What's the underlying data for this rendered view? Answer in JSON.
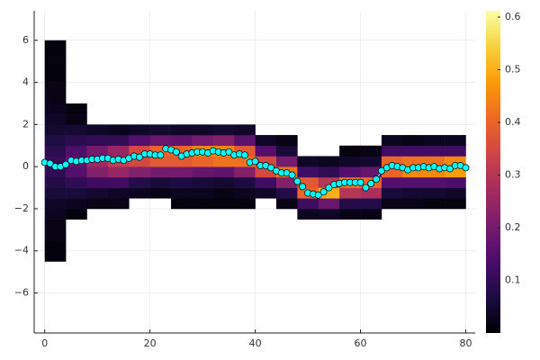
{
  "chart_data": {
    "type": "heatmap",
    "xlim": [
      -2,
      81.8
    ],
    "ylim": [
      -7.9,
      7.4
    ],
    "xticks": [
      0,
      20,
      40,
      60,
      80
    ],
    "yticks": [
      {
        "value": -6,
        "label": "−6"
      },
      {
        "value": -4,
        "label": "−4"
      },
      {
        "value": -2,
        "label": "−2"
      },
      0,
      2,
      4,
      6
    ],
    "grid": true,
    "xbins": [
      0,
      4,
      8,
      12,
      16,
      20,
      24,
      28,
      32,
      36,
      40,
      44,
      48,
      52,
      56,
      60,
      64,
      68,
      72,
      76,
      80
    ],
    "ybins": [
      -4.5,
      -4,
      -3.5,
      -3,
      -2.5,
      -2,
      -1.5,
      -1,
      -0.5,
      0,
      0.5,
      1,
      1.5,
      2,
      2.5,
      3,
      3.5,
      4,
      4.5,
      5,
      5.5,
      6
    ],
    "z": [
      [
        0.01,
        0.01,
        0.02,
        0.02,
        0.03,
        0.04,
        0.06,
        0.08,
        0.1,
        0.11,
        0.09,
        0.07,
        0.05,
        0.04,
        0.03,
        0.02,
        0.02,
        0.01,
        0.01,
        0.01,
        0.01
      ],
      [
        null,
        null,
        null,
        null,
        0.01,
        0.03,
        0.06,
        0.1,
        0.15,
        0.17,
        0.14,
        0.09,
        0.05,
        0.02,
        0.01,
        null,
        null,
        null,
        null,
        null,
        null
      ],
      [
        null,
        null,
        null,
        null,
        null,
        0.02,
        0.05,
        0.12,
        0.22,
        0.26,
        0.2,
        0.1,
        0.04,
        null,
        null,
        null,
        null,
        null,
        null,
        null,
        null
      ],
      [
        null,
        null,
        null,
        null,
        null,
        0.02,
        0.04,
        0.12,
        0.25,
        0.32,
        0.25,
        0.1,
        0.03,
        null,
        null,
        null,
        null,
        null,
        null,
        null,
        null
      ],
      [
        null,
        null,
        null,
        null,
        null,
        null,
        0.03,
        0.08,
        0.22,
        0.35,
        0.35,
        0.15,
        0.04,
        null,
        null,
        null,
        null,
        null,
        null,
        null,
        null
      ],
      [
        null,
        null,
        null,
        null,
        null,
        null,
        0.02,
        0.06,
        0.2,
        0.38,
        0.4,
        0.18,
        0.05,
        null,
        null,
        null,
        null,
        null,
        null,
        null,
        null
      ],
      [
        null,
        null,
        null,
        null,
        null,
        0.01,
        0.03,
        0.07,
        0.2,
        0.38,
        0.4,
        0.17,
        0.04,
        null,
        null,
        null,
        null,
        null,
        null,
        null,
        null
      ],
      [
        null,
        null,
        null,
        null,
        null,
        0.01,
        0.03,
        0.06,
        0.18,
        0.4,
        0.45,
        0.2,
        0.04,
        null,
        null,
        null,
        null,
        null,
        null,
        null,
        null
      ],
      [
        null,
        null,
        null,
        null,
        null,
        0.01,
        0.02,
        0.05,
        0.17,
        0.42,
        0.45,
        0.22,
        0.05,
        null,
        null,
        null,
        null,
        null,
        null,
        null,
        null
      ],
      [
        null,
        null,
        null,
        null,
        null,
        0.01,
        0.03,
        0.07,
        0.22,
        0.42,
        0.38,
        0.16,
        0.04,
        null,
        null,
        null,
        null,
        null,
        null,
        null,
        null
      ],
      [
        null,
        null,
        null,
        null,
        null,
        null,
        0.04,
        0.12,
        0.35,
        0.35,
        0.15,
        0.04,
        null,
        null,
        null,
        null,
        null,
        null,
        null,
        null,
        null
      ],
      [
        null,
        null,
        null,
        null,
        null,
        0.02,
        0.08,
        0.22,
        0.42,
        0.2,
        0.06,
        0.02,
        null,
        null,
        null,
        null,
        null,
        null,
        null,
        null,
        null
      ],
      [
        null,
        null,
        null,
        null,
        0.03,
        0.12,
        0.4,
        0.38,
        0.12,
        0.04,
        null,
        null,
        null,
        null,
        null,
        null,
        null,
        null,
        null,
        null,
        null
      ],
      [
        null,
        null,
        null,
        null,
        0.04,
        0.18,
        0.5,
        0.3,
        0.1,
        0.03,
        null,
        null,
        null,
        null,
        null,
        null,
        null,
        null,
        null,
        null,
        null
      ],
      [
        null,
        null,
        null,
        null,
        0.02,
        0.08,
        0.3,
        0.42,
        0.15,
        0.04,
        0.01,
        null,
        null,
        null,
        null,
        null,
        null,
        null,
        null,
        null,
        null
      ],
      [
        null,
        null,
        null,
        null,
        0.02,
        0.08,
        0.28,
        0.4,
        0.18,
        0.05,
        0.02,
        null,
        null,
        null,
        null,
        null,
        null,
        null,
        null,
        null,
        null
      ],
      [
        null,
        null,
        null,
        null,
        null,
        0.02,
        0.06,
        0.15,
        0.4,
        0.4,
        0.12,
        0.03,
        null,
        null,
        null,
        null,
        null,
        null,
        null,
        null,
        null
      ],
      [
        null,
        null,
        null,
        null,
        null,
        0.02,
        0.05,
        0.15,
        0.45,
        0.42,
        0.12,
        0.02,
        null,
        null,
        null,
        null,
        null,
        null,
        null,
        null,
        null
      ],
      [
        null,
        null,
        null,
        null,
        null,
        0.01,
        0.05,
        0.15,
        0.45,
        0.42,
        0.12,
        0.03,
        null,
        null,
        null,
        null,
        null,
        null,
        null,
        null,
        null
      ],
      [
        null,
        null,
        null,
        null,
        null,
        0.01,
        0.04,
        0.14,
        0.48,
        0.45,
        0.12,
        0.03,
        null,
        null,
        null,
        null,
        null,
        null,
        null,
        null,
        null
      ]
    ],
    "colormap": [
      "#000004",
      "#1b0c41",
      "#4a0c6b",
      "#781c6d",
      "#a52c60",
      "#cf4446",
      "#ed6925",
      "#fb9b06",
      "#f7d13d",
      "#fcffa4"
    ],
    "clim": [
      0,
      0.612
    ],
    "cticks": [
      0.1,
      0.2,
      0.3,
      0.4,
      0.5,
      0.6
    ],
    "series": [
      {
        "color": "#00ffff",
        "x": [
          0,
          1,
          2,
          3,
          4,
          5,
          6,
          7,
          8,
          9,
          10,
          11,
          12,
          13,
          14,
          15,
          16,
          17,
          18,
          19,
          20,
          21,
          22,
          23,
          24,
          25,
          26,
          27,
          28,
          29,
          30,
          31,
          32,
          33,
          34,
          35,
          36,
          37,
          38,
          39,
          40,
          41,
          42,
          43,
          44,
          45,
          46,
          47,
          48,
          49,
          50,
          51,
          52,
          53,
          54,
          55,
          56,
          57,
          58,
          59,
          60,
          61,
          62,
          63,
          64,
          65,
          66,
          67,
          68,
          69,
          70,
          71,
          72,
          73,
          74,
          75,
          76,
          77,
          78,
          79,
          80
        ],
        "values": [
          0.2,
          0.15,
          0.0,
          0.0,
          0.1,
          0.3,
          0.25,
          0.3,
          0.3,
          0.35,
          0.35,
          0.4,
          0.4,
          0.3,
          0.35,
          0.3,
          0.4,
          0.5,
          0.45,
          0.6,
          0.6,
          0.55,
          0.55,
          0.85,
          0.8,
          0.7,
          0.5,
          0.6,
          0.65,
          0.7,
          0.7,
          0.65,
          0.75,
          0.7,
          0.65,
          0.7,
          0.55,
          0.6,
          0.55,
          0.2,
          0.25,
          0.05,
          0.05,
          -0.05,
          -0.2,
          -0.3,
          -0.3,
          -0.4,
          -0.7,
          -0.95,
          -1.25,
          -1.3,
          -1.35,
          -1.2,
          -1.0,
          -0.85,
          -0.8,
          -0.75,
          -0.75,
          -0.75,
          -0.75,
          -1.0,
          -0.8,
          -0.6,
          -0.2,
          -0.05,
          0.05,
          0.0,
          -0.05,
          -0.15,
          -0.05,
          -0.05,
          0.0,
          -0.05,
          0.0,
          -0.1,
          -0.05,
          -0.1,
          0.05,
          0.05,
          -0.05
        ]
      }
    ]
  }
}
